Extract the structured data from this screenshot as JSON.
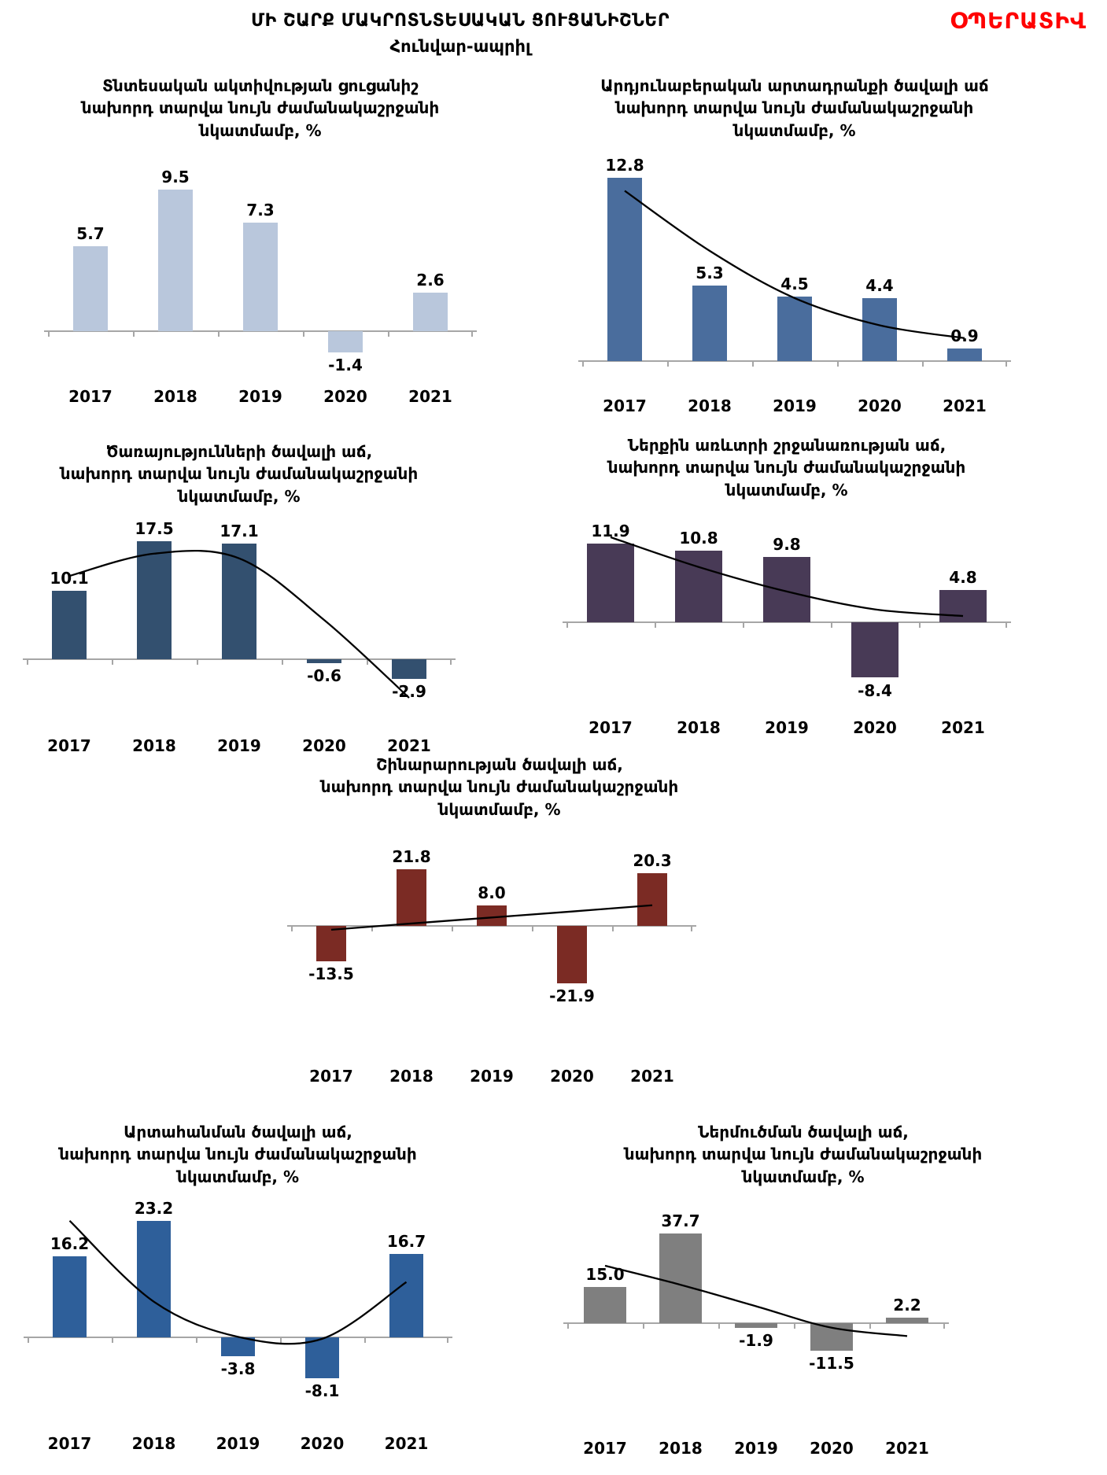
{
  "header": {
    "title": "ՄԻ ՇԱՐՔ ՄԱԿՐՈՏՆՏԵՍԱԿԱՆ ՑՈՒՑԱՆԻՇՆԵՐ",
    "subtitle": "Հունվար-ապրիլ",
    "badge": "ՕՊԵՐԱՏԻՎ",
    "badge_color": "#ff0000"
  },
  "chart_data": [
    {
      "id": "economic-activity-index",
      "type": "bar",
      "title": "Տնտեսական ակտիվության ցուցանիշ\nնախորդ տարվա նույն ժամանակաշրջանի\nնկատմամբ, %",
      "categories": [
        "2017",
        "2018",
        "2019",
        "2020",
        "2021"
      ],
      "values": [
        5.7,
        9.5,
        7.3,
        -1.4,
        2.6
      ],
      "color": "#b9c7dc",
      "trend_values": null,
      "ylim": [
        -3.0,
        12.3
      ],
      "bar_frac": 0.4,
      "grid": false,
      "legend": false
    },
    {
      "id": "industrial-production-growth",
      "type": "bar",
      "title": "Արդյունաբերական արտադրանքի ծավալի աճ\nնախորդ տարվա նույն ժամանակաշրջանի\nնկատմամբ, %",
      "categories": [
        "2017",
        "2018",
        "2019",
        "2020",
        "2021"
      ],
      "values": [
        12.8,
        5.3,
        4.5,
        4.4,
        0.9
      ],
      "color": "#4a6d9d",
      "trend_values": [
        11.9,
        7.7,
        4.4,
        2.5,
        1.6
      ],
      "ylim": [
        -1.6,
        14.9
      ],
      "bar_frac": 0.41,
      "grid": false,
      "legend": false
    },
    {
      "id": "services-growth",
      "type": "bar",
      "title": "Ծառայությունների ծավալի աճ,\nնախորդ տարվա նույն ժամանակաշրջանի\nնկատմամբ, %",
      "categories": [
        "2017",
        "2018",
        "2019",
        "2020",
        "2021"
      ],
      "values": [
        10.1,
        17.5,
        17.1,
        -0.6,
        -2.9
      ],
      "color": "#33506f",
      "trend_values": [
        12.3,
        15.6,
        14.9,
        5.8,
        -5.7
      ],
      "ylim": [
        -9.3,
        21.5
      ],
      "bar_frac": 0.4,
      "grid": false,
      "legend": false
    },
    {
      "id": "domestic-trade-turnover-growth",
      "type": "bar",
      "title": "Ներքին առևտրի շրջանառության աճ,\nնախորդ տարվա նույն ժամանակաշրջանի\nնկատմամբ, %",
      "categories": [
        "2017",
        "2018",
        "2019",
        "2020",
        "2021"
      ],
      "values": [
        11.9,
        10.8,
        9.8,
        -8.4,
        4.8
      ],
      "color": "#483a56",
      "trend_values": [
        12.8,
        8.3,
        4.6,
        1.9,
        0.9
      ],
      "ylim": [
        -12.4,
        17.3
      ],
      "bar_frac": 0.54,
      "grid": false,
      "legend": false
    },
    {
      "id": "construction-growth",
      "type": "bar",
      "title": "Շինարարության ծավալի աճ,\nնախորդ տարվա նույն ժամանակաշրջանի\nնկատմամբ, %",
      "categories": [
        "2017",
        "2018",
        "2019",
        "2020",
        "2021"
      ],
      "values": [
        -13.5,
        21.8,
        8.0,
        -21.9,
        20.3
      ],
      "color": "#7b2b24",
      "trend_values": [
        -1.5,
        0.9,
        3.2,
        5.5,
        7.9
      ],
      "ylim": [
        -45,
        38
      ],
      "bar_frac": 0.38,
      "grid": false,
      "legend": false
    },
    {
      "id": "exports-growth",
      "type": "bar",
      "title": "Արտահանման ծավալի աճ,\nնախորդ տարվա նույն ժամանակաշրջանի\nնկատմամբ, %",
      "categories": [
        "2017",
        "2018",
        "2019",
        "2020",
        "2021"
      ],
      "values": [
        16.2,
        23.2,
        -3.8,
        -8.1,
        16.7
      ],
      "color": "#2e5f9a",
      "trend_values": [
        23.2,
        7.1,
        0.1,
        -0.3,
        11.0
      ],
      "ylim": [
        -13,
        28.5
      ],
      "bar_frac": 0.4,
      "grid": false,
      "legend": false
    },
    {
      "id": "imports-growth",
      "type": "bar",
      "title": "Ներմուծման ծավալի աճ,\nնախորդ տարվա նույն ժամանակաշրջանի\nնկատմամբ, %",
      "categories": [
        "2017",
        "2018",
        "2019",
        "2020",
        "2021"
      ],
      "values": [
        15.0,
        37.7,
        -1.9,
        -11.5,
        2.2
      ],
      "color": "#7f7f7f",
      "trend_values": [
        24,
        16,
        7,
        -2,
        -5.5
      ],
      "ylim": [
        -40,
        54
      ],
      "bar_frac": 0.57,
      "grid": false,
      "legend": false
    }
  ]
}
